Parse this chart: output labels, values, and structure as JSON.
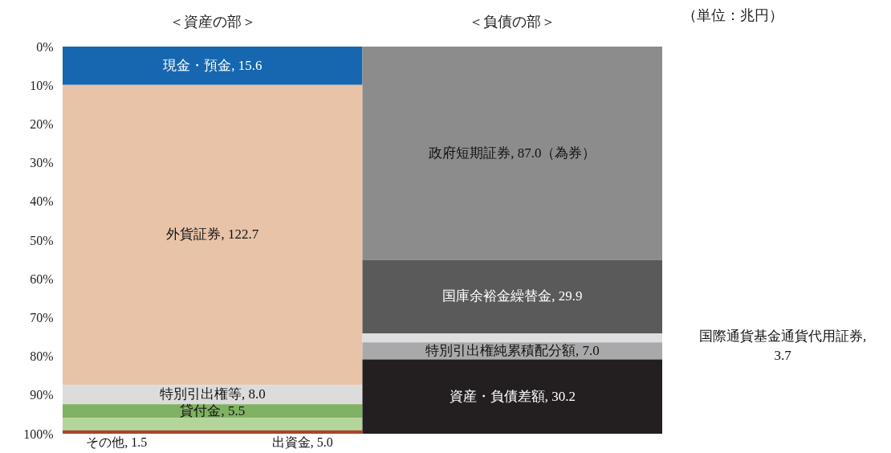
{
  "chart_data": {
    "type": "bar",
    "stacked": true,
    "categories": [
      "＜資産の部＞",
      "＜負債の部＞"
    ],
    "ylim": [
      100,
      0
    ],
    "yticks": [
      {
        "value": 0,
        "label": "0%"
      },
      {
        "value": 10,
        "label": "10%"
      },
      {
        "value": 20,
        "label": "20%"
      },
      {
        "value": 30,
        "label": "30%"
      },
      {
        "value": 40,
        "label": "40%"
      },
      {
        "value": 50,
        "label": "50%"
      },
      {
        "value": 60,
        "label": "60%"
      },
      {
        "value": 70,
        "label": "70%"
      },
      {
        "value": 80,
        "label": "80%"
      },
      {
        "value": 90,
        "label": "90%"
      },
      {
        "value": 100,
        "label": "100%"
      }
    ],
    "grid": false,
    "legend": false,
    "annotations": [
      "現金・預金, 15.6",
      "外貨証券, 122.7",
      "特別引出権等,  8.0",
      "貸付金, 5.5",
      "出資金, 5.0",
      "その他, 1.5",
      "政府短期証券, 87.0（為券）",
      "国庫余裕金繰替金, 29.9",
      "国際通貨基金通貨代用証券, 3.7",
      "特別引出権純累積配分額, 7.0",
      "資産・負債差額, 30.2",
      "（単位：兆円）"
    ],
    "series": [
      {
        "color": "#1667b0",
        "values": [
          9.9,
          null
        ]
      },
      {
        "color": "#e8c3a8",
        "values": [
          77.5,
          null
        ]
      },
      {
        "color": "#dcdcdc",
        "values": [
          5.0,
          null
        ]
      },
      {
        "color": "#7fb262",
        "values": [
          3.5,
          null
        ]
      },
      {
        "color": "#b3d59a",
        "values": [
          3.2,
          null
        ]
      },
      {
        "color": "#a8452a",
        "values": [
          0.9,
          null
        ]
      },
      {
        "color": "#8c8c8c",
        "values": [
          null,
          55.1
        ]
      },
      {
        "color": "#5a5a5a",
        "values": [
          null,
          19.0
        ]
      },
      {
        "color": "#dedede",
        "values": [
          null,
          2.3
        ]
      },
      {
        "color": "#a9a9ab",
        "values": [
          null,
          4.4
        ]
      },
      {
        "color": "#231f20",
        "values": [
          null,
          19.2
        ]
      }
    ]
  }
}
